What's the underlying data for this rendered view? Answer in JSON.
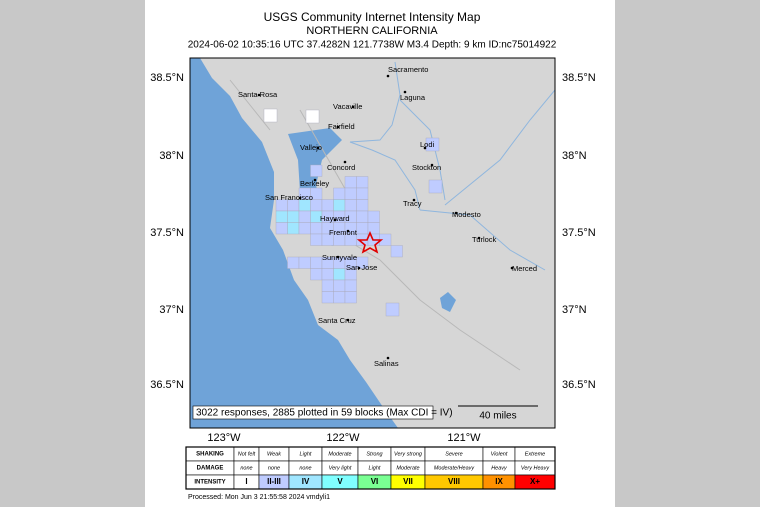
{
  "header": {
    "title": "USGS Community Internet Intensity Map",
    "region": "NORTHERN CALIFORNIA",
    "event": "2024-06-02 10:35:16 UTC 37.4282N 121.7738W M3.4 Depth: 9 km ID:nc75014922"
  },
  "map": {
    "lat_labels": [
      "38.5°N",
      "38°N",
      "37.5°N",
      "37°N",
      "36.5°N"
    ],
    "lon_labels": [
      "123°W",
      "122°W",
      "121°W"
    ],
    "cities": [
      "Sacramento",
      "Santa Rosa",
      "Vacaville",
      "Laguna",
      "Fairfield",
      "Vallejo",
      "Lodi",
      "Concord",
      "Berkeley",
      "Stockton",
      "San Francisco",
      "Tracy",
      "Modesto",
      "Hayward",
      "Fremont",
      "Turlock",
      "Sunnyvale",
      "San Jose",
      "Merced",
      "Santa Cruz",
      "Salinas"
    ],
    "note": "3022 responses, 2885 plotted in 59 blocks (Max CDI = IV)",
    "scale": "40 miles"
  },
  "legend": {
    "row_headers": [
      "SHAKING",
      "DAMAGE",
      "INTENSITY"
    ],
    "shaking": [
      "Not felt",
      "Weak",
      "Light",
      "Moderate",
      "Strong",
      "Very strong",
      "Severe",
      "Violent",
      "Extreme"
    ],
    "damage": [
      "none",
      "none",
      "none",
      "Very light",
      "Light",
      "Moderate",
      "Moderate/Heavy",
      "Heavy",
      "Very Heavy"
    ],
    "intensity": [
      "I",
      "II-III",
      "IV",
      "V",
      "VI",
      "VII",
      "VIII",
      "IX",
      "X+"
    ],
    "colors": [
      "#ffffff",
      "#bfccff",
      "#a0e6ff",
      "#80ffff",
      "#7aff93",
      "#ffff00",
      "#ffc800",
      "#ff9100",
      "#ff0000"
    ]
  },
  "footer": "Processed: Mon Jun  3 21:55:58 2024 vmdyli1"
}
